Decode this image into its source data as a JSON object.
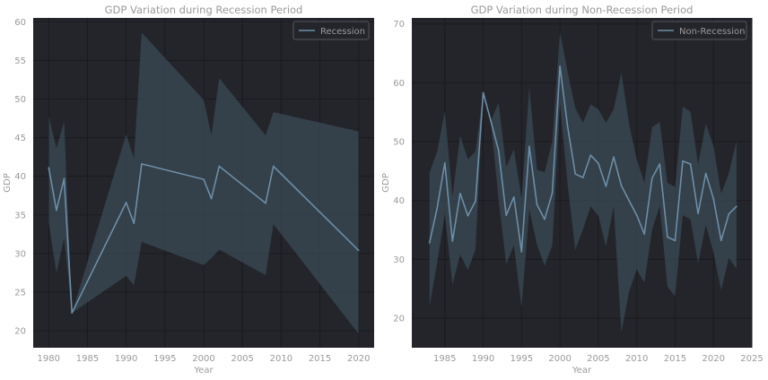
{
  "colors": {
    "plot_bg": "#24252b",
    "grid": "#1a1a1e",
    "line": "#6d8ea7",
    "band": "#3a4a55",
    "text": "#9a9a9a",
    "legend_bg": "#24252b",
    "legend_border": "#55565c"
  },
  "chart_data": [
    {
      "type": "line",
      "title": "GDP Variation during Recession Period",
      "xlabel": "Year",
      "ylabel": "GDP",
      "xlim": [
        1978,
        2022
      ],
      "ylim": [
        17.8,
        60.5
      ],
      "xticks": [
        1980,
        1985,
        1990,
        1995,
        2000,
        2005,
        2010,
        2015,
        2020
      ],
      "yticks": [
        20,
        25,
        30,
        35,
        40,
        45,
        50,
        55,
        60
      ],
      "grid": true,
      "legend_position": "top-right",
      "series": [
        {
          "name": "Recession",
          "x": [
            1980,
            1981,
            1982,
            1983,
            1990,
            1991,
            1992,
            2000,
            2001,
            2002,
            2008,
            2009,
            2020
          ],
          "y": [
            41.1,
            35.6,
            39.7,
            22.3,
            36.6,
            33.9,
            41.6,
            39.6,
            37.1,
            41.3,
            36.5,
            41.3,
            30.4
          ],
          "upper": [
            47.8,
            43.6,
            47.1,
            22.3,
            45.4,
            42.3,
            58.6,
            49.9,
            45.3,
            52.7,
            45.3,
            48.3,
            45.8
          ],
          "lower": [
            34.0,
            27.5,
            32.0,
            22.3,
            27.1,
            25.9,
            31.5,
            28.5,
            29.4,
            30.5,
            27.2,
            33.8,
            19.6
          ]
        }
      ]
    },
    {
      "type": "line",
      "title": "GDP Variation during Non-Recession Period",
      "xlabel": "Year",
      "ylabel": "GDP",
      "xlim": [
        1980.7,
        2025
      ],
      "ylim": [
        15,
        71
      ],
      "xticks": [
        1985,
        1990,
        1995,
        2000,
        2005,
        2010,
        2015,
        2020,
        2025
      ],
      "yticks": [
        20,
        30,
        40,
        50,
        60,
        70
      ],
      "grid": true,
      "legend_position": "top-right",
      "series": [
        {
          "name": "Non-Recession",
          "x": [
            1983,
            1984,
            1985,
            1986,
            1987,
            1988,
            1989,
            1990,
            1991,
            1992,
            1993,
            1994,
            1995,
            1996,
            1997,
            1998,
            1999,
            2000,
            2001,
            2002,
            2003,
            2004,
            2005,
            2006,
            2007,
            2008,
            2009,
            2010,
            2011,
            2012,
            2013,
            2014,
            2015,
            2016,
            2017,
            2018,
            2019,
            2020,
            2021,
            2022,
            2023
          ],
          "y": [
            32.8,
            38.7,
            46.4,
            33.1,
            41.2,
            37.4,
            39.9,
            58.3,
            53.5,
            48.5,
            37.5,
            40.6,
            31.3,
            49.2,
            39.3,
            36.8,
            41.3,
            62.8,
            52.5,
            44.5,
            43.9,
            47.7,
            46.3,
            42.4,
            47.4,
            42.5,
            40.0,
            37.5,
            34.3,
            43.8,
            46.2,
            33.8,
            33.2,
            46.7,
            46.2,
            37.8,
            44.6,
            40.3,
            33.2,
            37.7,
            39.0
          ],
          "upper": [
            44.7,
            48.3,
            55.1,
            40.7,
            51.0,
            47.0,
            48.3,
            58.3,
            53.5,
            56.6,
            45.7,
            48.7,
            40.4,
            59.2,
            45.2,
            44.8,
            50.0,
            68.6,
            61.8,
            55.7,
            53.2,
            56.3,
            55.5,
            53.2,
            55.5,
            61.7,
            53.0,
            47.0,
            43.0,
            52.5,
            53.3,
            43.0,
            42.3,
            55.9,
            55.1,
            46.1,
            53.0,
            49.3,
            41.2,
            44.6,
            50.1
          ],
          "lower": [
            22.0,
            29.4,
            37.7,
            25.7,
            30.8,
            28.2,
            31.7,
            58.3,
            53.5,
            40.2,
            29.2,
            32.4,
            21.9,
            38.5,
            32.5,
            28.9,
            32.4,
            56.3,
            42.7,
            31.6,
            35.1,
            39.0,
            37.4,
            32.2,
            39.0,
            17.6,
            24.5,
            28.3,
            26.1,
            35.0,
            39.1,
            25.4,
            23.7,
            37.5,
            36.8,
            29.3,
            35.9,
            31.2,
            24.8,
            30.2,
            28.4
          ]
        }
      ]
    }
  ]
}
